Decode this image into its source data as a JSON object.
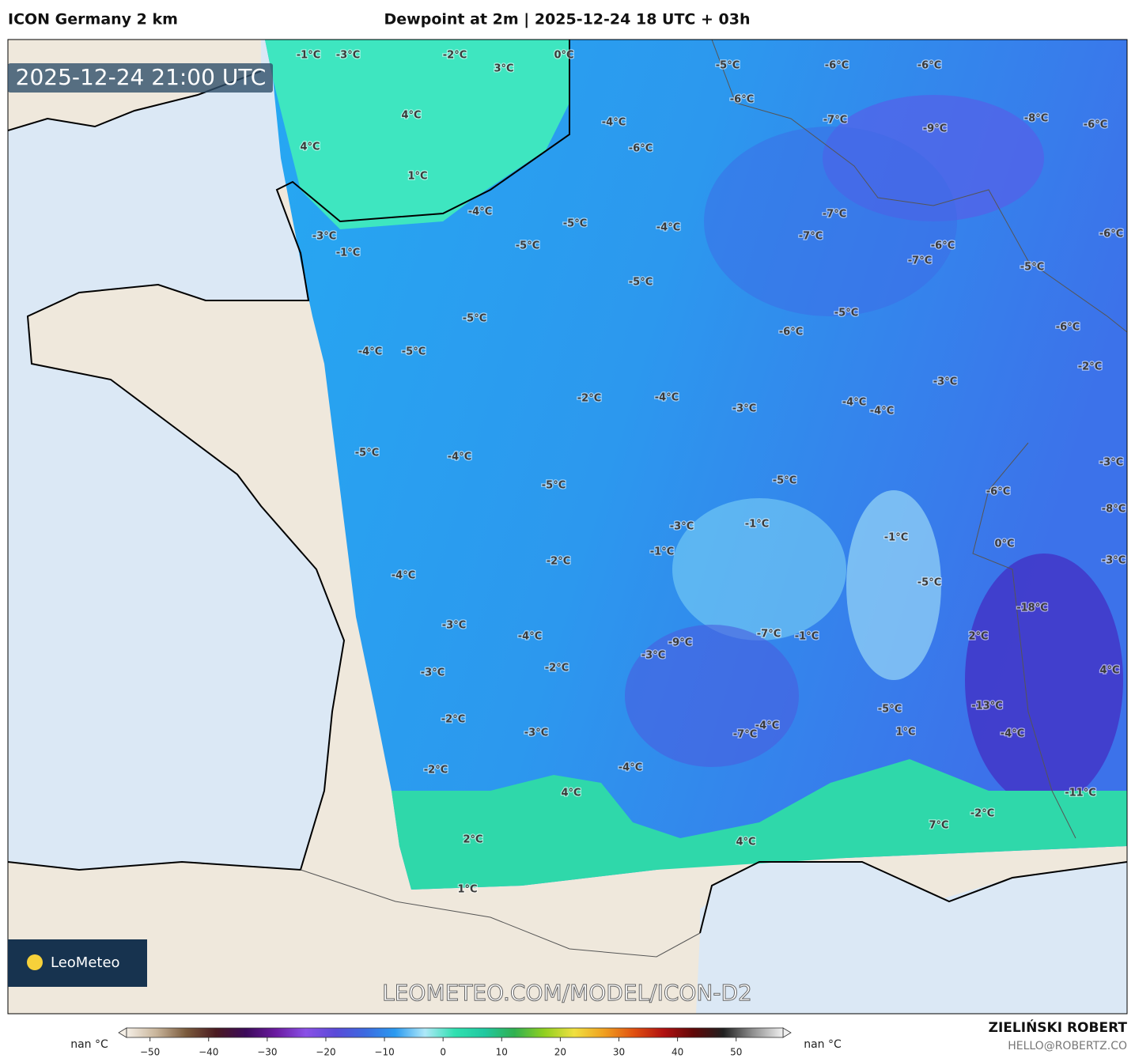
{
  "header": {
    "model": "ICON Germany 2 km",
    "title": "Dewpoint at 2m | 2025-12-24 18 UTC + 03h"
  },
  "map": {
    "valid_time": "2025-12-24 21:00 UTC",
    "labels": [
      "-1°C",
      "-3°C",
      "-2°C",
      "0°C",
      "3°C",
      "-5°C",
      "-6°C",
      "-6°C",
      "4°C",
      "-6°C",
      "-7°C",
      "-9°C",
      "-8°C",
      "-6°C",
      "4°C",
      "-4°C",
      "-6°C",
      "1°C",
      "-4°C",
      "-5°C",
      "-4°C",
      "-7°C",
      "-7°C",
      "-3°C",
      "-1°C",
      "-5°C",
      "-6°C",
      "-7°C",
      "-6°C",
      "-5°C",
      "-5°C",
      "-5°C",
      "-5°C",
      "-6°C",
      "-6°C",
      "-4°C",
      "-5°C",
      "-2°C",
      "-3°C",
      "-2°C",
      "-4°C",
      "-4°C",
      "-4°C",
      "-3°C",
      "-5°C",
      "-4°C",
      "-5°C",
      "-5°C",
      "-3°C",
      "-6°C",
      "-8°C",
      "-3°C",
      "-1°C",
      "-1°C",
      "0°C",
      "-1°C",
      "-2°C",
      "-3°C",
      "-4°C",
      "-5°C",
      "-18°C",
      "-3°C",
      "-4°C",
      "-7°C",
      "-1°C",
      "2°C",
      "-9°C",
      "-3°C",
      "-3°C",
      "-2°C",
      "4°C",
      "-5°C",
      "-13°C",
      "-2°C",
      "-4°C",
      "-7°C",
      "-3°C",
      "1°C",
      "-4°C",
      "-2°C",
      "-4°C",
      "4°C",
      "-11°C",
      "-2°C",
      "7°C",
      "2°C",
      "4°C",
      "1°C"
    ],
    "watermark": "LEOMETEO.COM/MODEL/ICON-D2",
    "logo": "LeoMeteo"
  },
  "colorbar": {
    "under_label": "nan °C",
    "over_label": "nan °C",
    "xlim": [
      -54,
      58
    ],
    "ticks": [
      {
        "value": -50,
        "label": "−50"
      },
      {
        "value": -40,
        "label": "−40"
      },
      {
        "value": -30,
        "label": "−30"
      },
      {
        "value": -20,
        "label": "−20"
      },
      {
        "value": -10,
        "label": "−10"
      },
      0,
      10,
      20,
      30,
      40,
      50
    ],
    "colors": [
      "#f5efe6",
      "#c8b49a",
      "#7a5a3c",
      "#4a1a20",
      "#3c0a5a",
      "#6a1aa0",
      "#8a50e6",
      "#5a4ad8",
      "#3c6ae0",
      "#2a9af0",
      "#aee8f8",
      "#30e0b0",
      "#20c8a0",
      "#30b050",
      "#90d020",
      "#f0e040",
      "#f0a020",
      "#e05010",
      "#b01010",
      "#600808",
      "#202020",
      "#909090",
      "#f0f0f0"
    ]
  },
  "credits": {
    "author": "ZIELIŃSKI ROBERT",
    "contact": "HELLO@ROBERTZ.CO"
  }
}
